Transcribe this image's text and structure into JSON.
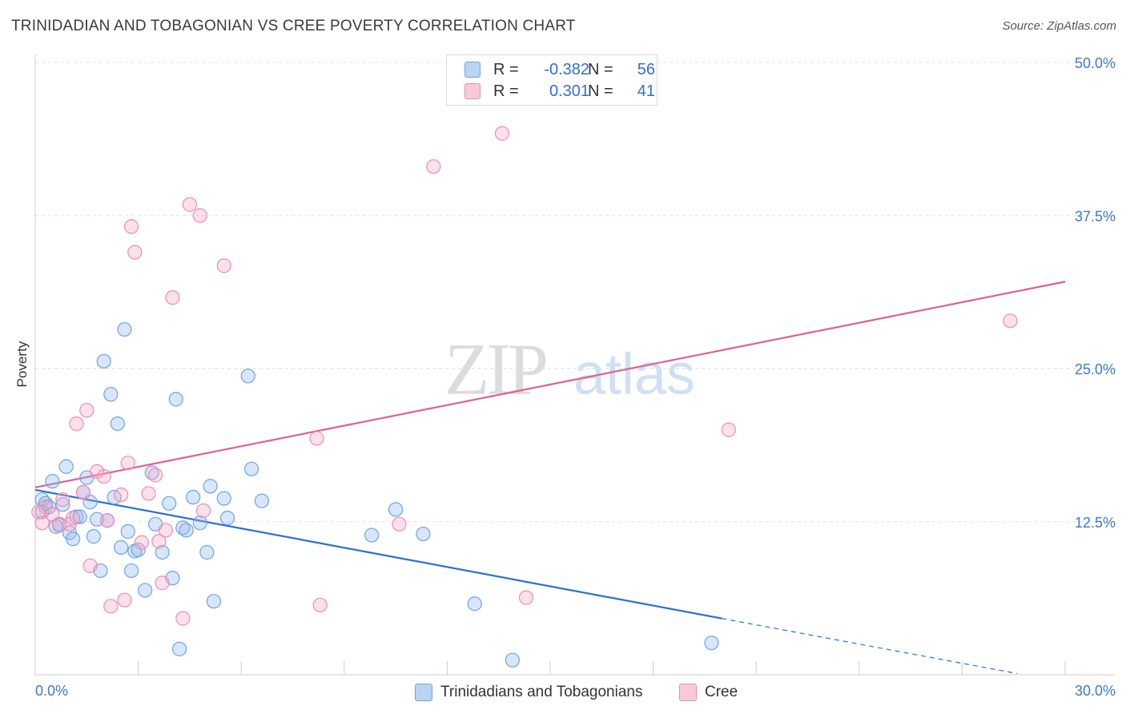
{
  "title": "TRINIDADIAN AND TOBAGONIAN VS CREE POVERTY CORRELATION CHART",
  "source": "Source: ZipAtlas.com",
  "watermark": {
    "zip": "ZIP",
    "atlas": "atlas"
  },
  "legend_top": [
    {
      "r_label": "R =",
      "r_value": "-0.382",
      "n_label": "N =",
      "n_value": "56",
      "color": "#6fa3e6"
    },
    {
      "r_label": "R =",
      "r_value": "0.301",
      "n_label": "N =",
      "n_value": "41",
      "color": "#f08bb0"
    }
  ],
  "chart_data": {
    "type": "scatter",
    "title": "TRINIDADIAN AND TOBAGONIAN VS CREE POVERTY CORRELATION CHART",
    "xlabel": "",
    "ylabel": "Poverty",
    "xlim": [
      0,
      30
    ],
    "ylim": [
      0,
      50
    ],
    "x_tick_labels": [
      "0.0%",
      "30.0%"
    ],
    "y_ticks": [
      12.5,
      25,
      37.5,
      50
    ],
    "y_tick_labels": [
      "12.5%",
      "25.0%",
      "37.5%",
      "50.0%"
    ],
    "grid": "horizontal dashed",
    "legend_position": "bottom-center",
    "series": [
      {
        "name": "Trinidadians and Tobagonians",
        "color": "#6fa3e6",
        "line_color": "#2b6fd4",
        "trend": {
          "x0": 0,
          "y0": 15.1,
          "x1": 20,
          "y1": 4.6,
          "extend_to_x": 28.6,
          "extend_to_y": 0.1
        },
        "points": [
          [
            0.2,
            14.3
          ],
          [
            0.3,
            14.0
          ],
          [
            0.2,
            13.3
          ],
          [
            0.4,
            13.7
          ],
          [
            0.5,
            15.8
          ],
          [
            0.6,
            12.1
          ],
          [
            0.7,
            12.3
          ],
          [
            0.8,
            13.9
          ],
          [
            0.9,
            17.0
          ],
          [
            1.0,
            11.6
          ],
          [
            1.1,
            11.1
          ],
          [
            1.2,
            12.9
          ],
          [
            1.3,
            12.9
          ],
          [
            1.4,
            14.9
          ],
          [
            1.5,
            16.1
          ],
          [
            1.6,
            14.1
          ],
          [
            1.7,
            11.3
          ],
          [
            1.8,
            12.7
          ],
          [
            1.9,
            8.5
          ],
          [
            2.0,
            25.6
          ],
          [
            2.1,
            12.6
          ],
          [
            2.2,
            22.9
          ],
          [
            2.3,
            14.5
          ],
          [
            2.4,
            20.5
          ],
          [
            2.5,
            10.4
          ],
          [
            2.6,
            28.2
          ],
          [
            2.7,
            11.7
          ],
          [
            2.8,
            8.5
          ],
          [
            2.9,
            10.1
          ],
          [
            3.0,
            10.2
          ],
          [
            3.2,
            6.9
          ],
          [
            3.4,
            16.5
          ],
          [
            3.5,
            12.3
          ],
          [
            3.7,
            10.0
          ],
          [
            3.9,
            14.0
          ],
          [
            4.0,
            7.9
          ],
          [
            4.1,
            22.5
          ],
          [
            4.2,
            2.1
          ],
          [
            4.3,
            12.0
          ],
          [
            4.4,
            11.8
          ],
          [
            4.6,
            14.5
          ],
          [
            4.8,
            12.4
          ],
          [
            5.0,
            10.0
          ],
          [
            5.1,
            15.4
          ],
          [
            5.2,
            6.0
          ],
          [
            5.5,
            14.4
          ],
          [
            5.6,
            12.8
          ],
          [
            6.2,
            24.4
          ],
          [
            6.3,
            16.8
          ],
          [
            6.6,
            14.2
          ],
          [
            9.8,
            11.4
          ],
          [
            10.5,
            13.5
          ],
          [
            11.3,
            11.5
          ],
          [
            12.8,
            5.8
          ],
          [
            13.9,
            1.2
          ],
          [
            19.7,
            2.6
          ]
        ]
      },
      {
        "name": "Cree",
        "color": "#f08bb0",
        "line_color": "#e0608f",
        "trend": {
          "x0": 0,
          "y0": 15.3,
          "x1": 30,
          "y1": 32.1
        },
        "points": [
          [
            0.2,
            12.4
          ],
          [
            0.3,
            13.7
          ],
          [
            0.5,
            13.1
          ],
          [
            0.7,
            12.2
          ],
          [
            0.8,
            14.3
          ],
          [
            1.0,
            12.3
          ],
          [
            1.1,
            12.8
          ],
          [
            1.2,
            20.5
          ],
          [
            1.4,
            14.9
          ],
          [
            1.5,
            21.6
          ],
          [
            1.6,
            8.9
          ],
          [
            1.8,
            16.6
          ],
          [
            2.0,
            16.2
          ],
          [
            2.1,
            12.6
          ],
          [
            2.2,
            5.6
          ],
          [
            2.5,
            14.7
          ],
          [
            2.6,
            6.1
          ],
          [
            2.7,
            17.3
          ],
          [
            2.8,
            36.6
          ],
          [
            2.9,
            34.5
          ],
          [
            3.1,
            10.8
          ],
          [
            3.3,
            14.8
          ],
          [
            3.5,
            16.3
          ],
          [
            3.6,
            10.9
          ],
          [
            3.7,
            7.5
          ],
          [
            3.8,
            11.8
          ],
          [
            4.0,
            30.8
          ],
          [
            4.3,
            4.6
          ],
          [
            4.5,
            38.4
          ],
          [
            4.8,
            37.5
          ],
          [
            4.9,
            13.4
          ],
          [
            5.5,
            33.4
          ],
          [
            8.2,
            19.3
          ],
          [
            8.3,
            5.7
          ],
          [
            10.6,
            12.3
          ],
          [
            11.6,
            41.5
          ],
          [
            13.6,
            44.2
          ],
          [
            14.3,
            6.3
          ],
          [
            20.2,
            20.0
          ],
          [
            28.4,
            28.9
          ],
          [
            0.1,
            13.3
          ]
        ]
      }
    ]
  },
  "bottom_legend": [
    {
      "label": "Trinidadians and Tobagonians",
      "color": "#6fa3e6"
    },
    {
      "label": "Cree",
      "color": "#f08bb0"
    }
  ]
}
